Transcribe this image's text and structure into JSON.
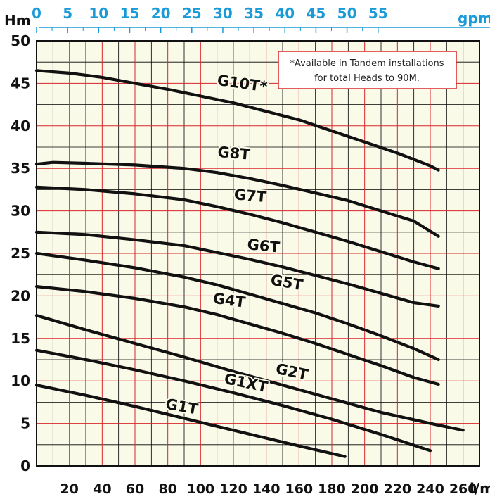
{
  "chart_data": {
    "type": "line",
    "y_axis": {
      "label": "Hm",
      "ticks": [
        0,
        5,
        10,
        15,
        20,
        25,
        30,
        35,
        40,
        45,
        50
      ],
      "range": [
        0,
        50
      ]
    },
    "x_axis_top": {
      "label": "gpm",
      "ticks": [
        0,
        5,
        10,
        15,
        20,
        25,
        30,
        35,
        40,
        45,
        50,
        55
      ],
      "color": "#1a9bd7"
    },
    "x_axis_bottom": {
      "label": "l/m",
      "ticks": [
        20,
        40,
        60,
        80,
        100,
        120,
        140,
        160,
        180,
        200,
        220,
        240,
        260
      ],
      "range": [
        0,
        270
      ]
    },
    "grid": {
      "major_color": "#d9262b",
      "minor_color": "#000000",
      "background": "#fafae8"
    },
    "annotation": {
      "lines": [
        "*Available in Tandem installations",
        "for total Heads to 90M."
      ]
    },
    "series": [
      {
        "name": "G10T*",
        "x": [
          0,
          20,
          40,
          60,
          80,
          100,
          120,
          140,
          160,
          180,
          200,
          220,
          240,
          245
        ],
        "y": [
          46.5,
          46.2,
          45.7,
          45.0,
          44.3,
          43.5,
          42.7,
          41.7,
          40.7,
          39.4,
          38.1,
          36.8,
          35.3,
          34.8
        ]
      },
      {
        "name": "G8T",
        "x": [
          0,
          10,
          30,
          60,
          90,
          110,
          130,
          150,
          170,
          190,
          210,
          230,
          245
        ],
        "y": [
          35.5,
          35.7,
          35.6,
          35.4,
          35.0,
          34.5,
          33.8,
          33.0,
          32.1,
          31.2,
          30.0,
          28.8,
          27.0
        ]
      },
      {
        "name": "G7T",
        "x": [
          0,
          30,
          60,
          90,
          110,
          130,
          150,
          170,
          190,
          210,
          230,
          245
        ],
        "y": [
          32.8,
          32.5,
          32.0,
          31.3,
          30.5,
          29.6,
          28.6,
          27.5,
          26.4,
          25.2,
          24.0,
          23.2
        ]
      },
      {
        "name": "G6T",
        "x": [
          0,
          30,
          60,
          90,
          110,
          130,
          150,
          170,
          190,
          210,
          230,
          245
        ],
        "y": [
          27.5,
          27.2,
          26.6,
          25.9,
          25.1,
          24.3,
          23.4,
          22.4,
          21.4,
          20.3,
          19.2,
          18.8
        ]
      },
      {
        "name": "G5T",
        "x": [
          0,
          30,
          60,
          90,
          110,
          130,
          150,
          170,
          190,
          210,
          230,
          245
        ],
        "y": [
          25.0,
          24.2,
          23.3,
          22.2,
          21.3,
          20.2,
          19.1,
          18.0,
          16.7,
          15.3,
          13.8,
          12.5
        ]
      },
      {
        "name": "G4T",
        "x": [
          0,
          30,
          60,
          90,
          110,
          130,
          150,
          170,
          190,
          210,
          230,
          245
        ],
        "y": [
          21.1,
          20.5,
          19.7,
          18.7,
          17.8,
          16.7,
          15.6,
          14.4,
          13.1,
          11.8,
          10.4,
          9.6
        ]
      },
      {
        "name": "G2T",
        "x": [
          0,
          30,
          60,
          90,
          120,
          150,
          180,
          210,
          240,
          260
        ],
        "y": [
          17.7,
          16.0,
          14.4,
          12.8,
          11.1,
          9.5,
          7.9,
          6.3,
          5.0,
          4.2
        ]
      },
      {
        "name": "G1XT",
        "x": [
          0,
          30,
          60,
          90,
          120,
          150,
          180,
          210,
          240
        ],
        "y": [
          13.6,
          12.5,
          11.3,
          10.0,
          8.6,
          7.1,
          5.5,
          3.7,
          1.8
        ]
      },
      {
        "name": "G1T",
        "x": [
          0,
          30,
          60,
          90,
          120,
          150,
          188
        ],
        "y": [
          9.5,
          8.3,
          7.0,
          5.6,
          4.2,
          2.8,
          1.1
        ]
      }
    ],
    "curve_labels": [
      {
        "series": "G10T*",
        "at_x": 125,
        "at_y": 44.4,
        "angle": 8
      },
      {
        "series": "G8T",
        "at_x": 120,
        "at_y": 36.2,
        "angle": 5
      },
      {
        "series": "G7T",
        "at_x": 130,
        "at_y": 31.2,
        "angle": 5
      },
      {
        "series": "G6T",
        "at_x": 138,
        "at_y": 25.3,
        "angle": 6
      },
      {
        "series": "G5T",
        "at_x": 152,
        "at_y": 21.0,
        "angle": 10
      },
      {
        "series": "G4T",
        "at_x": 117,
        "at_y": 18.9,
        "angle": 8
      },
      {
        "series": "G2T",
        "at_x": 155,
        "at_y": 10.5,
        "angle": 12
      },
      {
        "series": "G1XT",
        "at_x": 127,
        "at_y": 9.2,
        "angle": 12
      },
      {
        "series": "G1T",
        "at_x": 88,
        "at_y": 6.4,
        "angle": 10
      }
    ]
  }
}
